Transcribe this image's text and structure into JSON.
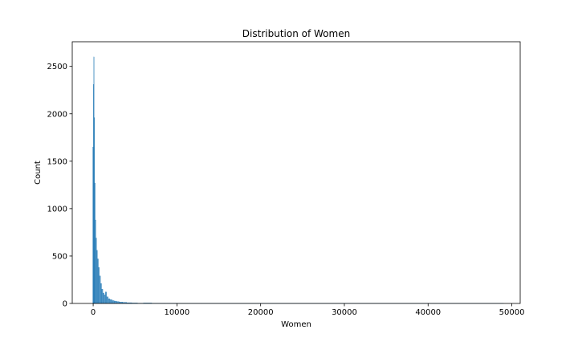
{
  "chart_data": {
    "type": "histogram",
    "title": "Distribution of Women",
    "xlabel": "Women",
    "ylabel": "Count",
    "xlim": [
      -2500,
      51000
    ],
    "ylim": [
      0,
      2760
    ],
    "xticks": [
      0,
      10000,
      20000,
      30000,
      40000,
      50000
    ],
    "yticks": [
      0,
      500,
      1000,
      1500,
      2000,
      2500
    ],
    "grid": false,
    "bar_color": "#1f77b4",
    "bins": [
      {
        "x0": -50,
        "x1": 20,
        "count": 1650
      },
      {
        "x0": 20,
        "x1": 60,
        "count": 2310
      },
      {
        "x0": 60,
        "x1": 110,
        "count": 2600
      },
      {
        "x0": 110,
        "x1": 170,
        "count": 1960
      },
      {
        "x0": 170,
        "x1": 240,
        "count": 1270
      },
      {
        "x0": 240,
        "x1": 320,
        "count": 880
      },
      {
        "x0": 320,
        "x1": 410,
        "count": 690
      },
      {
        "x0": 410,
        "x1": 510,
        "count": 560
      },
      {
        "x0": 510,
        "x1": 620,
        "count": 470
      },
      {
        "x0": 620,
        "x1": 740,
        "count": 380
      },
      {
        "x0": 740,
        "x1": 870,
        "count": 290
      },
      {
        "x0": 870,
        "x1": 1000,
        "count": 210
      },
      {
        "x0": 1000,
        "x1": 1150,
        "count": 150
      },
      {
        "x0": 1150,
        "x1": 1300,
        "count": 110
      },
      {
        "x0": 1300,
        "x1": 1450,
        "count": 90
      },
      {
        "x0": 1450,
        "x1": 1600,
        "count": 120
      },
      {
        "x0": 1600,
        "x1": 1800,
        "count": 70
      },
      {
        "x0": 1800,
        "x1": 2000,
        "count": 50
      },
      {
        "x0": 2000,
        "x1": 2250,
        "count": 40
      },
      {
        "x0": 2250,
        "x1": 2500,
        "count": 30
      },
      {
        "x0": 2500,
        "x1": 2800,
        "count": 25
      },
      {
        "x0": 2800,
        "x1": 3100,
        "count": 20
      },
      {
        "x0": 3100,
        "x1": 3500,
        "count": 15
      },
      {
        "x0": 3500,
        "x1": 4000,
        "count": 12
      },
      {
        "x0": 4000,
        "x1": 4600,
        "count": 8
      },
      {
        "x0": 4600,
        "x1": 5300,
        "count": 5
      },
      {
        "x0": 5300,
        "x1": 6000,
        "count": 3
      },
      {
        "x0": 6000,
        "x1": 7000,
        "count": 5
      },
      {
        "x0": 7000,
        "x1": 8500,
        "count": 2
      },
      {
        "x0": 8500,
        "x1": 10000,
        "count": 2
      },
      {
        "x0": 10000,
        "x1": 13000,
        "count": 1
      },
      {
        "x0": 13000,
        "x1": 20000,
        "count": 1
      },
      {
        "x0": 20000,
        "x1": 30000,
        "count": 1
      },
      {
        "x0": 30000,
        "x1": 49000,
        "count": 1
      }
    ]
  }
}
